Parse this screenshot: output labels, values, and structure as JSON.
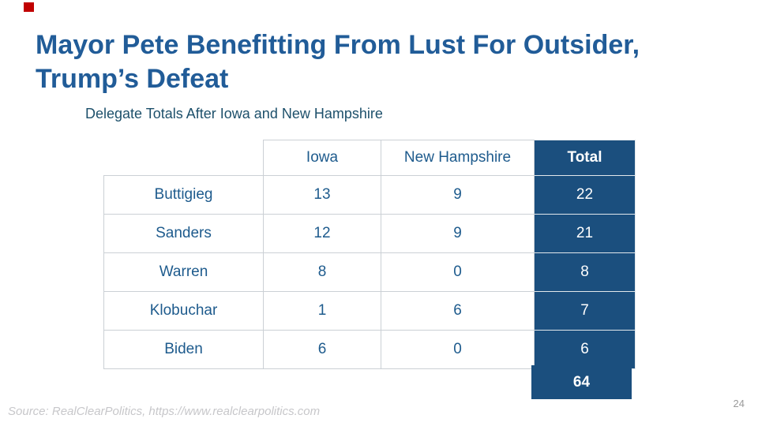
{
  "slide": {
    "title_line1": "Mayor Pete Benefitting From Lust For Outsider,",
    "title_line2": "Trump’s Defeat",
    "subtitle": "Delegate Totals After Iowa and New Hampshire",
    "source": "Source: RealClearPolitics, https://www.realclearpolitics.com",
    "page_number": "24"
  },
  "table": {
    "column_headers": [
      "",
      "Iowa",
      "New Hampshire",
      "Total"
    ],
    "rows": [
      {
        "label": "Buttigieg",
        "iowa": "13",
        "new_hampshire": "9",
        "total": "22"
      },
      {
        "label": "Sanders",
        "iowa": "12",
        "new_hampshire": "9",
        "total": "21"
      },
      {
        "label": "Warren",
        "iowa": "8",
        "new_hampshire": "0",
        "total": "8"
      },
      {
        "label": "Klobuchar",
        "iowa": "1",
        "new_hampshire": "6",
        "total": "7"
      },
      {
        "label": "Biden",
        "iowa": "6",
        "new_hampshire": "0",
        "total": "6"
      }
    ],
    "grand_total": "64"
  },
  "chart_data": {
    "type": "table",
    "title": "Delegate Totals After Iowa and New Hampshire",
    "categories": [
      "Buttigieg",
      "Sanders",
      "Warren",
      "Klobuchar",
      "Biden"
    ],
    "series": [
      {
        "name": "Iowa",
        "values": [
          13,
          12,
          8,
          1,
          6
        ]
      },
      {
        "name": "New Hampshire",
        "values": [
          9,
          9,
          0,
          6,
          0
        ]
      },
      {
        "name": "Total",
        "values": [
          22,
          21,
          8,
          7,
          6
        ]
      }
    ],
    "grand_total": 64
  },
  "colors": {
    "title_blue": "#215c98",
    "subtitle_blue": "#1d506b",
    "table_text_blue": "#1e5b8d",
    "total_column_blue": "#1b4f7e",
    "accent_red": "#c00000",
    "border_gray": "#cbd0d5",
    "source_gray": "#c7c7ca"
  }
}
